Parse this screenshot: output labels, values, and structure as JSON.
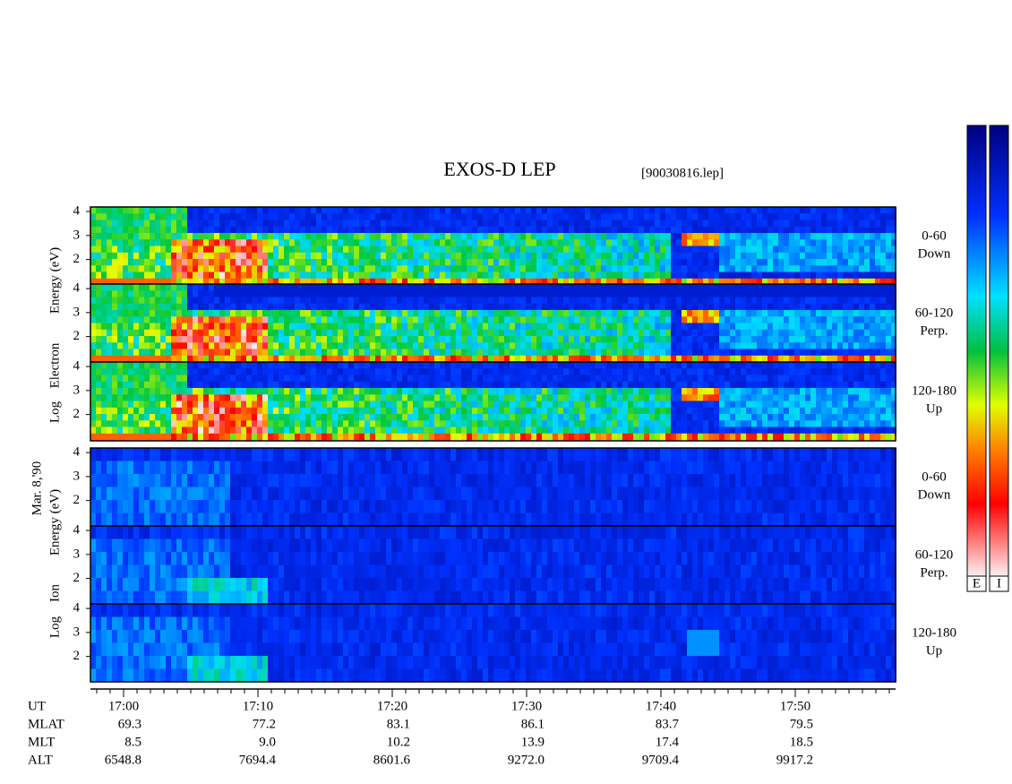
{
  "figure": {
    "title": "EXOS-D LEP",
    "file": "[90030816.lep]",
    "date": "Mar. 8,'90",
    "ylim": [
      0.94,
      4.19
    ],
    "yticks": [
      2,
      3,
      4
    ],
    "groups": [
      {
        "axis_label": [
          "Log",
          "Electron",
          "Energy (eV)"
        ],
        "panels": [
          [
            "0-60",
            "Down"
          ],
          [
            "60-120",
            "Perp."
          ],
          [
            "120-180",
            "Up"
          ]
        ]
      },
      {
        "axis_label": [
          "Log",
          "Ion",
          "Energy (eV)"
        ],
        "panels": [
          [
            "0-60",
            "Down"
          ],
          [
            "60-120",
            "Perp."
          ],
          [
            "120-180",
            "Up"
          ]
        ]
      }
    ],
    "colorbars": [
      "E",
      "I"
    ],
    "table": {
      "row_labels": [
        "UT",
        "MLAT",
        "MLT",
        "ALT"
      ],
      "times": [
        "17:00",
        "17:10",
        "17:20",
        "17:30",
        "17:40",
        "17:50"
      ],
      "rows": [
        [
          "69.3",
          "77.2",
          "83.1",
          "86.1",
          "83.7",
          "79.5"
        ],
        [
          "8.5",
          "9.0",
          "10.2",
          "13.9",
          "17.4",
          "18.5"
        ],
        [
          "6548.8",
          "7694.4",
          "8601.6",
          "9272.0",
          "9709.4",
          "9917.2"
        ]
      ]
    }
  }
}
